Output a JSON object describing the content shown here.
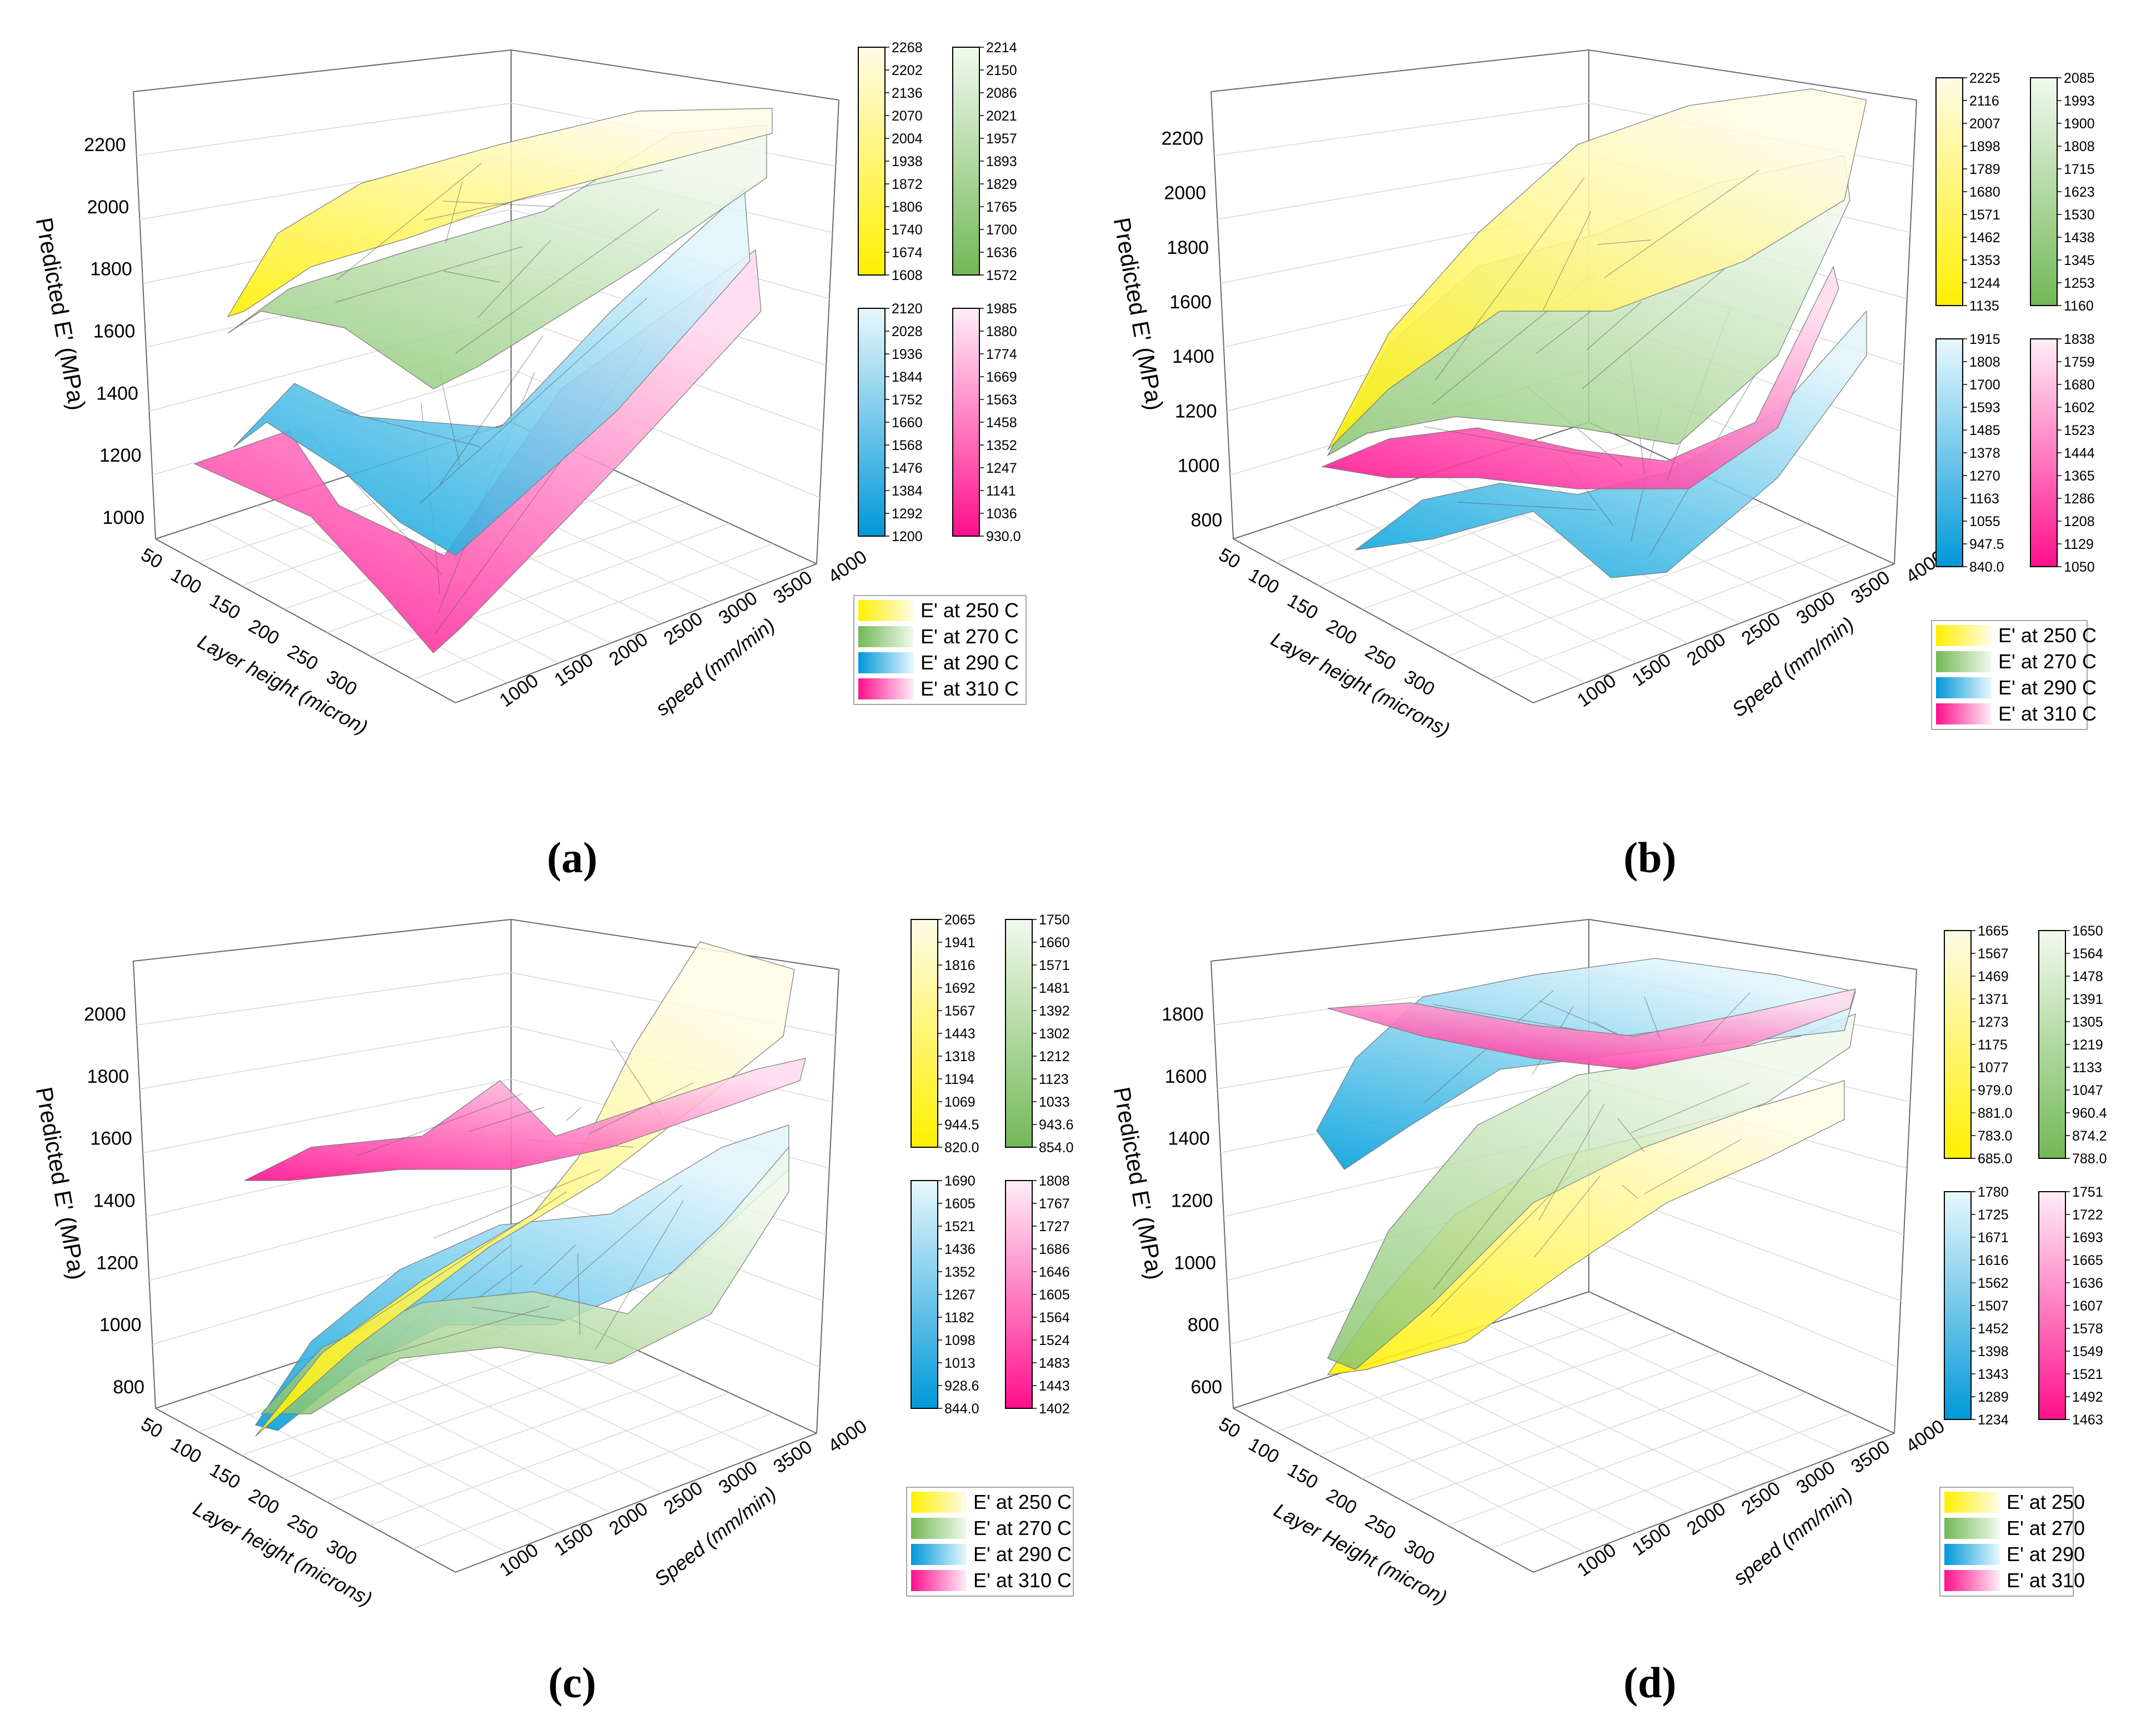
{
  "figure": {
    "panels": [
      "a",
      "b",
      "c",
      "d"
    ]
  },
  "chart_data": [
    {
      "id": "a",
      "caption": "(a)",
      "type": "surface3d",
      "zlabel": "Predicted E' (MPa)",
      "xlabel": "Layer height (micron)",
      "ylabel": "speed (mm/min)",
      "z_ticks": [
        "1000",
        "1200",
        "1400",
        "1600",
        "1800",
        "2000",
        "2200"
      ],
      "x_ticks": [
        "50",
        "100",
        "150",
        "200",
        "250",
        "300"
      ],
      "y_ticks": [
        "1000",
        "1500",
        "2000",
        "2500",
        "3000",
        "3500",
        "4000"
      ],
      "colorbars": [
        {
          "series": "E' at 250 C",
          "ticks": [
            "2268",
            "2202",
            "2136",
            "2070",
            "2004",
            "1938",
            "1872",
            "1806",
            "1740",
            "1674",
            "1608"
          ]
        },
        {
          "series": "E' at 270 C",
          "ticks": [
            "2214",
            "2150",
            "2086",
            "2021",
            "1957",
            "1893",
            "1829",
            "1765",
            "1700",
            "1636",
            "1572"
          ]
        },
        {
          "series": "E' at 290 C",
          "ticks": [
            "2120",
            "2028",
            "1936",
            "1844",
            "1752",
            "1660",
            "1568",
            "1476",
            "1384",
            "1292",
            "1200"
          ]
        },
        {
          "series": "E' at 310 C",
          "ticks": [
            "1985",
            "1880",
            "1774",
            "1669",
            "1563",
            "1458",
            "1352",
            "1247",
            "1141",
            "1036",
            "930.0"
          ]
        }
      ],
      "legend": [
        "E' at 250 C",
        "E' at 270 C",
        "E' at 290 C",
        "E' at 310 C"
      ]
    },
    {
      "id": "b",
      "caption": "(b)",
      "type": "surface3d",
      "zlabel": "Predicted E' (MPa)",
      "xlabel": "Layer height (microns)",
      "ylabel": "Speed (mm/min)",
      "z_ticks": [
        "800",
        "1000",
        "1200",
        "1400",
        "1600",
        "1800",
        "2000",
        "2200"
      ],
      "x_ticks": [
        "50",
        "100",
        "150",
        "200",
        "250",
        "300"
      ],
      "y_ticks": [
        "1000",
        "1500",
        "2000",
        "2500",
        "3000",
        "3500",
        "4000"
      ],
      "colorbars": [
        {
          "series": "E' at 250 C",
          "ticks": [
            "2225",
            "2116",
            "2007",
            "1898",
            "1789",
            "1680",
            "1571",
            "1462",
            "1353",
            "1244",
            "1135"
          ]
        },
        {
          "series": "E' at 270 C",
          "ticks": [
            "2085",
            "1993",
            "1900",
            "1808",
            "1715",
            "1623",
            "1530",
            "1438",
            "1345",
            "1253",
            "1160"
          ]
        },
        {
          "series": "E' at 290 C",
          "ticks": [
            "1915",
            "1808",
            "1700",
            "1593",
            "1485",
            "1378",
            "1270",
            "1163",
            "1055",
            "947.5",
            "840.0"
          ]
        },
        {
          "series": "E' at 310 C",
          "ticks": [
            "1838",
            "1759",
            "1680",
            "1602",
            "1523",
            "1444",
            "1365",
            "1286",
            "1208",
            "1129",
            "1050"
          ]
        }
      ],
      "legend": [
        "E' at 250 C",
        "E' at 270 C",
        "E' at 290 C",
        "E' at 310 C"
      ]
    },
    {
      "id": "c",
      "caption": "(c)",
      "type": "surface3d",
      "zlabel": "Predicted E' (MPa)",
      "xlabel": "Layer height (microns)",
      "ylabel": "Speed (mm/min)",
      "z_ticks": [
        "800",
        "1000",
        "1200",
        "1400",
        "1600",
        "1800",
        "2000"
      ],
      "x_ticks": [
        "50",
        "100",
        "150",
        "200",
        "250",
        "300"
      ],
      "y_ticks": [
        "1000",
        "1500",
        "2000",
        "2500",
        "3000",
        "3500",
        "4000"
      ],
      "colorbars": [
        {
          "series": "E' at 250 C",
          "ticks": [
            "2065",
            "1941",
            "1816",
            "1692",
            "1567",
            "1443",
            "1318",
            "1194",
            "1069",
            "944.5",
            "820.0"
          ]
        },
        {
          "series": "E' at 270 C",
          "ticks": [
            "1750",
            "1660",
            "1571",
            "1481",
            "1392",
            "1302",
            "1212",
            "1123",
            "1033",
            "943.6",
            "854.0"
          ]
        },
        {
          "series": "E' at 290 C",
          "ticks": [
            "1690",
            "1605",
            "1521",
            "1436",
            "1352",
            "1267",
            "1182",
            "1098",
            "1013",
            "928.6",
            "844.0"
          ]
        },
        {
          "series": "E' at 310 C",
          "ticks": [
            "1808",
            "1767",
            "1727",
            "1686",
            "1646",
            "1605",
            "1564",
            "1524",
            "1483",
            "1443",
            "1402"
          ]
        }
      ],
      "legend": [
        "E' at 250 C",
        "E' at 270 C",
        "E' at 290 C",
        "E' at 310 C"
      ]
    },
    {
      "id": "d",
      "caption": "(d)",
      "type": "surface3d",
      "zlabel": "Predicted E' (MPa)",
      "xlabel": "Layer Height (micron)",
      "ylabel": "speed (mm/min)",
      "z_ticks": [
        "600",
        "800",
        "1000",
        "1200",
        "1400",
        "1600",
        "1800"
      ],
      "x_ticks": [
        "50",
        "100",
        "150",
        "200",
        "250",
        "300"
      ],
      "y_ticks": [
        "1000",
        "1500",
        "2000",
        "2500",
        "3000",
        "3500",
        "4000"
      ],
      "colorbars": [
        {
          "series": "E' at 250",
          "ticks": [
            "1665",
            "1567",
            "1469",
            "1371",
            "1273",
            "1175",
            "1077",
            "979.0",
            "881.0",
            "783.0",
            "685.0"
          ]
        },
        {
          "series": "E' at 270",
          "ticks": [
            "1650",
            "1564",
            "1478",
            "1391",
            "1305",
            "1219",
            "1133",
            "1047",
            "960.4",
            "874.2",
            "788.0"
          ]
        },
        {
          "series": "E' at 290",
          "ticks": [
            "1780",
            "1725",
            "1671",
            "1616",
            "1562",
            "1507",
            "1452",
            "1398",
            "1343",
            "1289",
            "1234"
          ]
        },
        {
          "series": "E' at 310",
          "ticks": [
            "1751",
            "1722",
            "1693",
            "1665",
            "1636",
            "1607",
            "1578",
            "1549",
            "1521",
            "1492",
            "1463"
          ]
        }
      ],
      "legend": [
        "E' at 250",
        "E' at 270",
        "E' at 290",
        "E' at 310"
      ]
    }
  ],
  "colors": {
    "yellow": "#fff000",
    "yellow_light": "#fffbe3",
    "green": "#7fc060",
    "green_light": "#eef8ea",
    "blue": "#00a8e0",
    "blue_light": "#e3f6fc",
    "pink": "#ff1493",
    "pink_light": "#ffe6f3"
  }
}
